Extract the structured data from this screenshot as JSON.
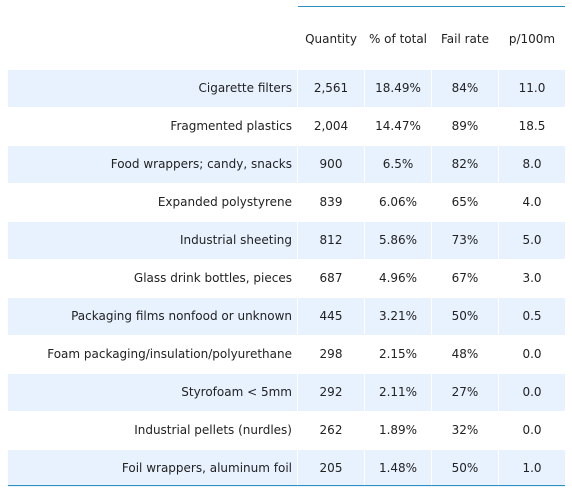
{
  "chart_data": {
    "type": "table",
    "columns": [
      "Quantity",
      "% of total",
      "Fail rate",
      "p/100m"
    ],
    "rows": [
      {
        "label": "Cigarette filters",
        "values": [
          "2,561",
          "18.49%",
          "84%",
          "11.0"
        ]
      },
      {
        "label": "Fragmented plastics",
        "values": [
          "2,004",
          "14.47%",
          "89%",
          "18.5"
        ]
      },
      {
        "label": "Food wrappers; candy, snacks",
        "values": [
          "900",
          "6.5%",
          "82%",
          "8.0"
        ]
      },
      {
        "label": "Expanded polystyrene",
        "values": [
          "839",
          "6.06%",
          "65%",
          "4.0"
        ]
      },
      {
        "label": "Industrial sheeting",
        "values": [
          "812",
          "5.86%",
          "73%",
          "5.0"
        ]
      },
      {
        "label": "Glass drink bottles, pieces",
        "values": [
          "687",
          "4.96%",
          "67%",
          "3.0"
        ]
      },
      {
        "label": "Packaging films nonfood or unknown",
        "values": [
          "445",
          "3.21%",
          "50%",
          "0.5"
        ]
      },
      {
        "label": "Foam packaging/insulation/polyurethane",
        "values": [
          "298",
          "2.15%",
          "48%",
          "0.0"
        ]
      },
      {
        "label": "Styrofoam < 5mm",
        "values": [
          "292",
          "2.11%",
          "27%",
          "0.0"
        ]
      },
      {
        "label": "Industrial pellets (nurdles)",
        "values": [
          "262",
          "1.89%",
          "32%",
          "0.0"
        ]
      },
      {
        "label": "Foil wrappers, aluminum foil",
        "values": [
          "205",
          "1.48%",
          "50%",
          "1.0"
        ]
      }
    ],
    "row_shading": "alternating",
    "colors": {
      "shade": "#e8f2ff",
      "rule": "#2c8fbf",
      "text": "#222222"
    }
  }
}
